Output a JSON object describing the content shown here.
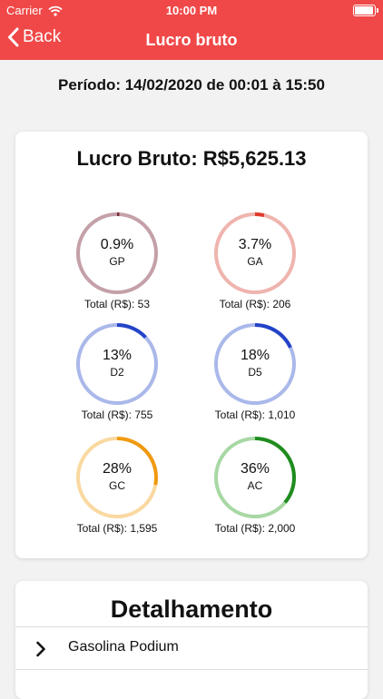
{
  "status": {
    "carrier": "Carrier",
    "time": "10:00 PM"
  },
  "nav": {
    "back_label": "Back",
    "title": "Lucro bruto"
  },
  "period": "Período: 14/02/2020 de 00:01 à 15:50",
  "summary": {
    "title": "Lucro Bruto: R$5,625.13"
  },
  "gauges": [
    {
      "code": "GP",
      "percent_label": "0.9%",
      "percent": 0.9,
      "total": "Total (R$): 53",
      "track_color": "#c4a0a8",
      "fill_color": "#7a2a35"
    },
    {
      "code": "GA",
      "percent_label": "3.7%",
      "percent": 3.7,
      "total": "Total (R$): 206",
      "track_color": "#efb4ae",
      "fill_color": "#e03a2a"
    },
    {
      "code": "D2",
      "percent_label": "13%",
      "percent": 13,
      "total": "Total (R$): 755",
      "track_color": "#aab8ea",
      "fill_color": "#2343c8"
    },
    {
      "code": "D5",
      "percent_label": "18%",
      "percent": 18,
      "total": "Total (R$): 1,010",
      "track_color": "#aab8ea",
      "fill_color": "#2343c8"
    },
    {
      "code": "GC",
      "percent_label": "28%",
      "percent": 28,
      "total": "Total (R$): 1,595",
      "track_color": "#f9d9a0",
      "fill_color": "#f09a10"
    },
    {
      "code": "AC",
      "percent_label": "36%",
      "percent": 36,
      "total": "Total (R$): 2,000",
      "track_color": "#a8d8a4",
      "fill_color": "#1e8c1e"
    }
  ],
  "details": {
    "title": "Detalhamento",
    "items": [
      {
        "label": "Gasolina Podium",
        "icon": "chevron-right-icon"
      }
    ]
  }
}
